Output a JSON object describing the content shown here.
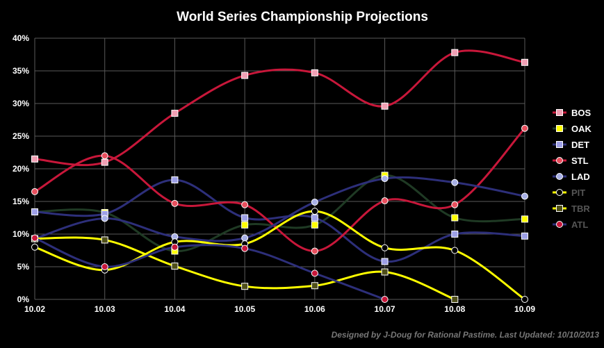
{
  "chart_data": {
    "type": "line",
    "title": "World Series Championship Projections",
    "credit": "Designed by J-Doug for Rational Pastime. Last Updated: 10/10/2013",
    "categories": [
      "10.02",
      "10.03",
      "10.04",
      "10.05",
      "10.06",
      "10.07",
      "10.08",
      "10.09"
    ],
    "ylim": [
      0,
      40
    ],
    "yticks": [
      0,
      5,
      10,
      15,
      20,
      25,
      30,
      35,
      40
    ],
    "ytick_labels": [
      "0%",
      "5%",
      "10%",
      "15%",
      "20%",
      "25%",
      "30%",
      "35%",
      "40%"
    ],
    "grid": true,
    "legend_position": "right",
    "series": [
      {
        "name": "BOS",
        "color": "#c8173a",
        "marker": "square",
        "marker_fill": "#f0a0b4",
        "label_color": "#ffffff",
        "values": [
          21.5,
          21,
          28.5,
          34.3,
          34.7,
          29.6,
          37.8,
          36.3
        ]
      },
      {
        "name": "OAK",
        "color": "#1f3a24",
        "marker": "square",
        "marker_fill": "#ffff00",
        "label_color": "#ffffff",
        "values": [
          13.4,
          13.3,
          7.4,
          11.4,
          11.4,
          19,
          12.5,
          12.3
        ]
      },
      {
        "name": "DET",
        "color": "#2d2f7a",
        "marker": "square",
        "marker_fill": "#9ea0e6",
        "label_color": "#ffffff",
        "values": [
          13.4,
          13.1,
          18.3,
          12.5,
          12.5,
          5.8,
          10,
          9.7
        ]
      },
      {
        "name": "STL",
        "color": "#c8173a",
        "marker": "circle",
        "marker_fill": "#e8505e",
        "label_color": "#ffffff",
        "values": [
          16.5,
          22,
          14.7,
          14.5,
          7.4,
          15.1,
          14.5,
          26.2
        ]
      },
      {
        "name": "LAD",
        "color": "#2d2f7a",
        "marker": "circle",
        "marker_fill": "#a8b0e6",
        "label_color": "#ffffff",
        "values": [
          9.3,
          12.4,
          9.6,
          9.4,
          14.9,
          18.5,
          17.9,
          15.8
        ]
      },
      {
        "name": "PIT",
        "color": "#ffff00",
        "marker": "circle",
        "marker_fill": "#000000",
        "label_color": "#555555",
        "values": [
          8,
          4.5,
          8.8,
          8.5,
          13.5,
          7.9,
          7.5,
          0
        ]
      },
      {
        "name": "TBR",
        "color": "#ffff00",
        "marker": "square",
        "marker_fill": "#4f4f1a",
        "label_color": "#555555",
        "values": [
          9.3,
          9.1,
          5.1,
          2,
          2.1,
          4.2,
          0,
          null
        ]
      },
      {
        "name": "ATL",
        "color": "#2d2f7a",
        "marker": "circle",
        "marker_fill": "#c8173a",
        "label_color": "#555555",
        "values": [
          9.4,
          5,
          8,
          7.8,
          4,
          0,
          null,
          null
        ]
      }
    ]
  }
}
